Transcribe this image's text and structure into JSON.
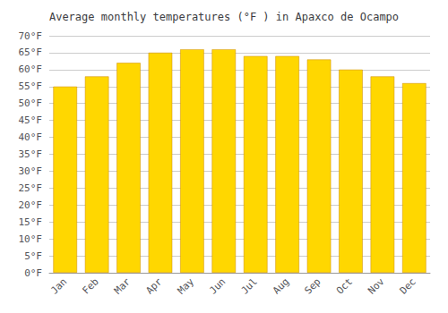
{
  "chart_data": {
    "type": "bar",
    "title": "Average monthly temperatures (°F ) in Apaxco de Ocampo",
    "categories": [
      "Jan",
      "Feb",
      "Mar",
      "Apr",
      "May",
      "Jun",
      "Jul",
      "Aug",
      "Sep",
      "Oct",
      "Nov",
      "Dec"
    ],
    "values": [
      55,
      58,
      62,
      65,
      66,
      66,
      64,
      64,
      63,
      60,
      58,
      56
    ],
    "color": "#FFD700",
    "ylim": [
      0,
      70
    ],
    "yticks": [
      {
        "value": 0,
        "label": "0°F"
      },
      {
        "value": 5,
        "label": "5°F"
      },
      {
        "value": 10,
        "label": "10°F"
      },
      {
        "value": 15,
        "label": "15°F"
      },
      {
        "value": 20,
        "label": "20°F"
      },
      {
        "value": 25,
        "label": "25°F"
      },
      {
        "value": 30,
        "label": "30°F"
      },
      {
        "value": 35,
        "label": "35°F"
      },
      {
        "value": 40,
        "label": "40°F"
      },
      {
        "value": 45,
        "label": "45°F"
      },
      {
        "value": 50,
        "label": "50°F"
      },
      {
        "value": 55,
        "label": "55°F"
      },
      {
        "value": 60,
        "label": "60°F"
      },
      {
        "value": 65,
        "label": "65°F"
      },
      {
        "value": 70,
        "label": "70°F"
      }
    ],
    "grid": true
  }
}
